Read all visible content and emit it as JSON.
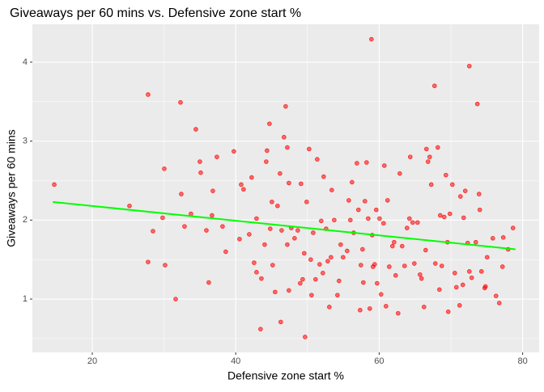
{
  "chart_data": {
    "type": "scatter",
    "title": "Giveaways per 60 mins vs. Defensive zone start %",
    "x_label": "Defensive zone start %",
    "y_label": "Giveaways per 60 mins",
    "xlim": [
      11.65,
      82.3
    ],
    "ylim": [
      0.325,
      4.48
    ],
    "xticks": [
      20,
      40,
      60,
      80
    ],
    "yticks": [
      1,
      2,
      3,
      4
    ],
    "xminor": [
      30,
      50,
      70
    ],
    "yminor": [
      0.5,
      1.5,
      2.5,
      3.5
    ],
    "grid": true,
    "color": "#ff0000",
    "x": [
      14.7,
      25.19,
      27.78,
      28.46,
      27.78,
      29.81,
      30.04,
      30.15,
      31.62,
      32.3,
      32.41,
      32.86,
      33.76,
      34.44,
      35.0,
      35.12,
      35.91,
      36.24,
      36.69,
      36.81,
      37.37,
      38.16,
      38.61,
      39.74,
      40.53,
      40.76,
      41.09,
      41.88,
      42.22,
      42.56,
      42.9,
      42.9,
      43.46,
      43.58,
      44.03,
      44.25,
      44.7,
      44.36,
      44.81,
      45.04,
      45.15,
      45.49,
      45.83,
      46.17,
      46.28,
      46.4,
      46.73,
      46.96,
      47.19,
      47.19,
      47.41,
      47.41,
      47.75,
      48.2,
      48.65,
      48.99,
      49.1,
      49.33,
      49.55,
      49.67,
      49.89,
      50.23,
      50.46,
      50.57,
      50.8,
      51.13,
      51.36,
      51.7,
      51.92,
      52.15,
      52.26,
      52.6,
      52.83,
      53.05,
      53.28,
      53.39,
      53.73,
      54.18,
      54.4,
      54.63,
      54.97,
      55.53,
      55.76,
      55.98,
      56.21,
      56.44,
      56.89,
      57.11,
      57.34,
      57.45,
      57.68,
      57.79,
      58.01,
      58.24,
      58.47,
      58.69,
      58.92,
      59.03,
      59.14,
      59.37,
      59.59,
      59.71,
      60.05,
      60.27,
      60.61,
      60.72,
      60.95,
      61.17,
      61.4,
      61.85,
      62.08,
      62.3,
      62.64,
      62.87,
      63.2,
      63.54,
      63.88,
      64.22,
      64.33,
      64.67,
      64.9,
      65.35,
      65.69,
      65.91,
      66.25,
      66.48,
      66.59,
      66.81,
      67.04,
      67.26,
      67.72,
      67.83,
      68.17,
      68.4,
      68.51,
      68.73,
      69.07,
      69.3,
      69.52,
      69.63,
      69.86,
      70.2,
      70.54,
      70.76,
      71.21,
      71.33,
      71.66,
      71.78,
      72.0,
      72.34,
      72.57,
      72.9,
      72.57,
      73.69,
      74.26,
      74.71,
      75.05,
      75.84,
      76.29,
      76.74,
      77.19,
      77.3,
      77.98,
      78.66,
      73.92,
      74.03,
      74.82,
      73.47
    ],
    "y": [
      2.45,
      2.18,
      3.59,
      1.86,
      1.47,
      2.03,
      2.65,
      1.43,
      1.0,
      3.49,
      2.33,
      1.92,
      2.08,
      3.15,
      2.74,
      2.6,
      1.87,
      1.21,
      2.06,
      2.37,
      2.8,
      1.92,
      1.6,
      2.87,
      1.76,
      2.45,
      2.39,
      1.82,
      2.54,
      1.46,
      2.02,
      1.34,
      0.62,
      1.26,
      1.69,
      2.74,
      3.22,
      2.88,
      1.89,
      2.23,
      1.43,
      1.09,
      2.18,
      2.59,
      0.71,
      1.87,
      3.05,
      3.44,
      2.92,
      1.69,
      2.47,
      1.11,
      1.9,
      1.77,
      1.87,
      1.2,
      2.46,
      1.25,
      1.58,
      0.52,
      2.23,
      2.9,
      1.5,
      1.05,
      1.84,
      1.25,
      2.77,
      1.44,
      1.99,
      1.33,
      2.55,
      1.89,
      1.48,
      0.9,
      1.53,
      2.38,
      2.0,
      1.05,
      1.23,
      1.69,
      1.53,
      1.61,
      2.25,
      2.0,
      2.48,
      1.84,
      2.72,
      2.13,
      0.86,
      1.43,
      1.63,
      1.21,
      2.24,
      2.73,
      2.02,
      0.88,
      4.29,
      1.81,
      1.41,
      1.44,
      2.13,
      1.2,
      2.02,
      1.06,
      1.96,
      2.69,
      0.91,
      2.25,
      1.41,
      1.67,
      1.72,
      1.3,
      0.82,
      2.59,
      1.67,
      1.42,
      1.9,
      2.02,
      2.8,
      1.97,
      1.45,
      1.97,
      1.31,
      1.26,
      0.9,
      1.62,
      2.9,
      2.74,
      2.8,
      2.45,
      3.7,
      1.45,
      2.92,
      1.12,
      2.06,
      1.42,
      2.04,
      2.57,
      1.72,
      0.84,
      2.08,
      2.45,
      1.33,
      1.15,
      0.92,
      2.3,
      1.18,
      2.03,
      2.37,
      1.71,
      1.35,
      1.27,
      3.95,
      3.47,
      1.35,
      1.14,
      1.53,
      1.77,
      1.04,
      0.95,
      1.41,
      1.78,
      1.63,
      1.9,
      2.33,
      2.13,
      1.16,
      1.72
    ],
    "trend": {
      "x": [
        14.5,
        79
      ],
      "y": [
        2.23,
        1.63
      ],
      "color": "#00ff00"
    }
  }
}
